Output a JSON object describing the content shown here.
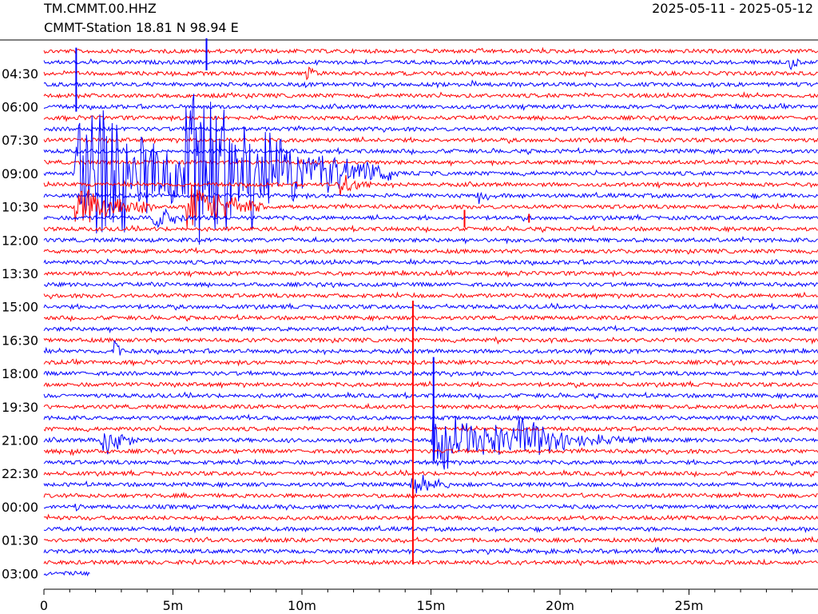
{
  "header": {
    "station_id": "TM.CMMT.00.HHZ",
    "station_location": "CMMT-Station  18.81 N 98.94 E",
    "date_range": "2025-05-11 - 2025-05-12"
  },
  "colors": {
    "trace_a": "#ff0000",
    "trace_b": "#0000ff",
    "axis": "#000000"
  },
  "chart_data": {
    "type": "line",
    "title": "TM.CMMT.00.HHZ",
    "xlabel": "",
    "ylabel": "",
    "x_unit": "minutes",
    "xlim": [
      0,
      30
    ],
    "x_tick_labels": [
      {
        "value": 0,
        "label": "0"
      },
      {
        "value": 5,
        "label": "5m"
      },
      {
        "value": 10,
        "label": "10m"
      },
      {
        "value": 15,
        "label": "15m"
      },
      {
        "value": 20,
        "label": "20m"
      },
      {
        "value": 25,
        "label": "25m"
      }
    ],
    "x_minor_ticks": [
      1,
      2,
      3,
      4,
      6,
      7,
      8,
      9,
      11,
      12,
      13,
      14,
      16,
      17,
      18,
      19,
      21,
      22,
      23,
      24,
      26,
      27,
      28,
      29
    ],
    "row_interval_minutes": 30,
    "rows": 48,
    "last_row_end_minute": 1.8,
    "y_tick_labels": [
      {
        "row": 2,
        "label": "04:30"
      },
      {
        "row": 5,
        "label": "06:00"
      },
      {
        "row": 8,
        "label": "07:30"
      },
      {
        "row": 11,
        "label": "09:00"
      },
      {
        "row": 14,
        "label": "10:30"
      },
      {
        "row": 17,
        "label": "12:00"
      },
      {
        "row": 20,
        "label": "13:30"
      },
      {
        "row": 23,
        "label": "15:00"
      },
      {
        "row": 26,
        "label": "16:30"
      },
      {
        "row": 29,
        "label": "18:00"
      },
      {
        "row": 32,
        "label": "19:30"
      },
      {
        "row": 35,
        "label": "21:00"
      },
      {
        "row": 38,
        "label": "22:30"
      },
      {
        "row": 41,
        "label": "00:00"
      },
      {
        "row": 44,
        "label": "01:30"
      },
      {
        "row": 47,
        "label": "03:00"
      }
    ],
    "events": [
      {
        "row": 11,
        "start": 1.2,
        "dur": 9,
        "amp": 150,
        "decay": 3.2,
        "color": "trace_b"
      },
      {
        "row": 11,
        "start": 5.5,
        "dur": 8,
        "amp": 180,
        "decay": 3.0,
        "color": "trace_b"
      },
      {
        "row": 11,
        "start": 11.0,
        "dur": 4,
        "amp": 14,
        "decay": 2.0,
        "color": "trace_b"
      },
      {
        "row": 14,
        "start": 1.2,
        "dur": 3,
        "amp": 35,
        "decay": 2.0,
        "color": "trace_b"
      },
      {
        "row": 14,
        "start": 5.5,
        "dur": 3,
        "amp": 40,
        "decay": 2.0,
        "color": "trace_b"
      },
      {
        "row": 12,
        "start": 11.4,
        "dur": 1.6,
        "amp": 22,
        "decay": 0.8,
        "color": "trace_a"
      },
      {
        "row": 13,
        "start": 16.8,
        "dur": 0.8,
        "amp": 22,
        "decay": 0.4,
        "color": "trace_b"
      },
      {
        "row": 15,
        "start": 4.2,
        "dur": 2.5,
        "amp": 20,
        "decay": 1.2,
        "color": "trace_a"
      },
      {
        "row": 1,
        "start": 28.9,
        "dur": 0.7,
        "amp": 12,
        "decay": 0.35,
        "color": "trace_a"
      },
      {
        "row": 2,
        "start": 10.1,
        "dur": 0.5,
        "amp": 22,
        "decay": 0.3,
        "color": "trace_b"
      },
      {
        "row": 3,
        "start": 16.6,
        "dur": 0.6,
        "amp": 6,
        "decay": 0.3,
        "color": "trace_b"
      },
      {
        "row": 23,
        "start": 15.6,
        "dur": 0.6,
        "amp": 6,
        "decay": 0.3,
        "color": "trace_a"
      },
      {
        "row": 26,
        "start": 17.5,
        "dur": 0.4,
        "amp": 8,
        "decay": 0.3,
        "color": "trace_b"
      },
      {
        "row": 26,
        "start": 29.7,
        "dur": 0.3,
        "amp": 8,
        "decay": 0.3,
        "color": "trace_b"
      },
      {
        "row": 27,
        "start": 2.7,
        "dur": 0.8,
        "amp": 20,
        "decay": 0.4,
        "color": "trace_a"
      },
      {
        "row": 35,
        "start": 2.2,
        "dur": 1.6,
        "amp": 30,
        "decay": 0.8,
        "color": "trace_a"
      },
      {
        "row": 35,
        "start": 15.0,
        "dur": 9,
        "amp": 45,
        "decay": 3.5,
        "color": "trace_b"
      },
      {
        "row": 35,
        "start": 18.2,
        "dur": 5,
        "amp": 40,
        "decay": 2.0,
        "color": "trace_b"
      },
      {
        "row": 36,
        "start": 1.0,
        "dur": 0.8,
        "amp": 12,
        "decay": 0.4,
        "color": "trace_b"
      },
      {
        "row": 39,
        "start": 14.2,
        "dur": 1.6,
        "amp": 26,
        "decay": 0.9,
        "color": "trace_a"
      },
      {
        "row": 41,
        "start": 1.2,
        "dur": 0.5,
        "amp": 10,
        "decay": 0.3,
        "color": "trace_b"
      },
      {
        "row": 45,
        "start": 23.7,
        "dur": 0.6,
        "amp": 10,
        "decay": 0.3,
        "color": "trace_a"
      }
    ],
    "spikes": [
      {
        "row": 4,
        "x": 1.25,
        "up": 60,
        "down": 20,
        "color": "trace_b"
      },
      {
        "row": 1,
        "x": 6.3,
        "up": 30,
        "down": 10,
        "color": "trace_b"
      },
      {
        "row": 15,
        "x": 16.3,
        "up": 10,
        "down": 12,
        "color": "trace_a"
      },
      {
        "row": 15,
        "x": 18.8,
        "up": 5,
        "down": 6,
        "color": "trace_a"
      },
      {
        "row": 39,
        "x": 14.3,
        "up": 230,
        "down": 100,
        "color": "trace_a"
      },
      {
        "row": 34,
        "x": 15.1,
        "up": 90,
        "down": 40,
        "color": "trace_b"
      }
    ]
  }
}
